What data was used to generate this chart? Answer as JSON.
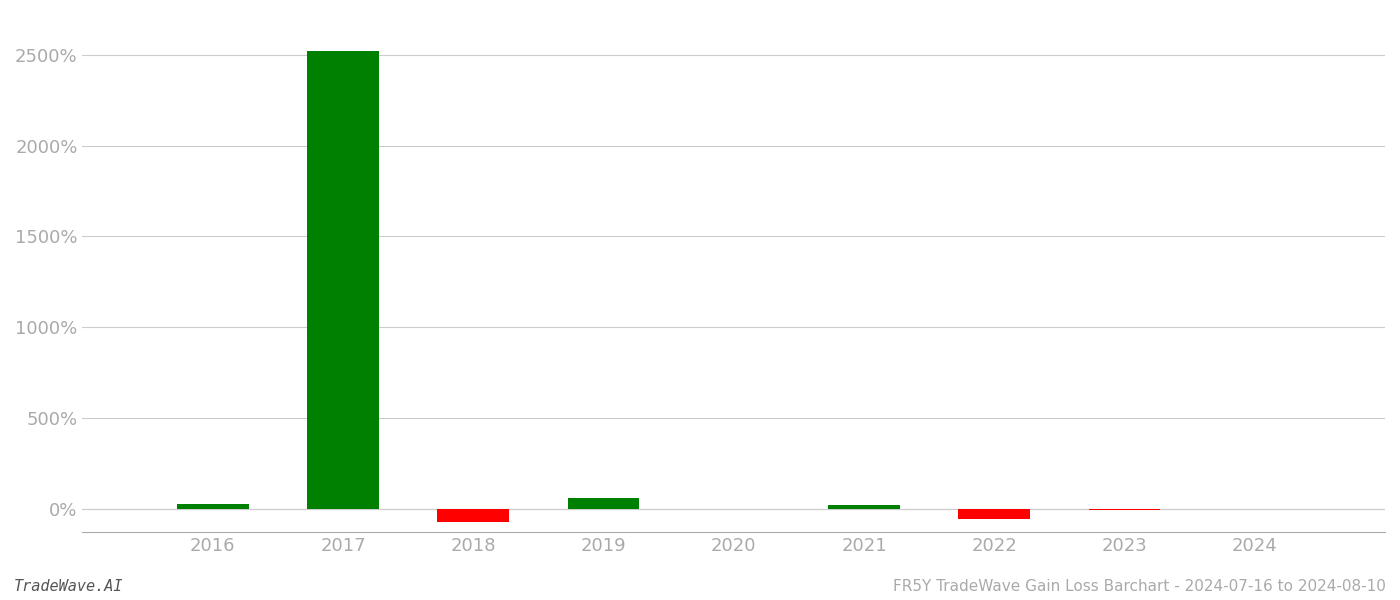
{
  "years": [
    2016,
    2017,
    2018,
    2019,
    2020,
    2021,
    2022,
    2023,
    2024
  ],
  "values": [
    25,
    2520,
    -75,
    60,
    -3,
    18,
    -60,
    -8,
    -5
  ],
  "bar_colors": [
    "#008000",
    "#008000",
    "#ff0000",
    "#008000",
    "#ff0000",
    "#008000",
    "#ff0000",
    "#ff0000",
    "#ff0000"
  ],
  "ylim_min": -130,
  "ylim_max": 2720,
  "ytick_values": [
    0,
    500,
    1000,
    1500,
    2000,
    2500
  ],
  "xlabel": "",
  "ylabel": "",
  "title": "",
  "footer_left": "TradeWave.AI",
  "footer_right": "FR5Y TradeWave Gain Loss Barchart - 2024-07-16 to 2024-08-10",
  "background_color": "#ffffff",
  "grid_color": "#cccccc",
  "bar_width": 0.55,
  "tick_label_color": "#aaaaaa",
  "footer_font_size": 11,
  "tick_fontsize": 13
}
